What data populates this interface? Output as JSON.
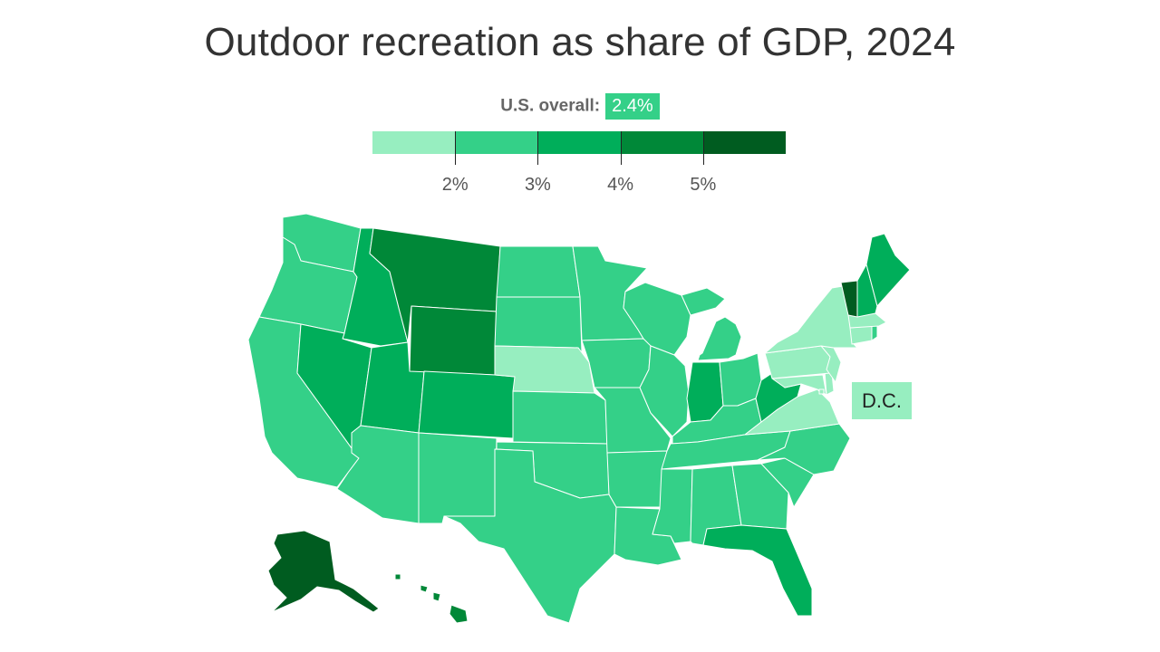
{
  "title": "Outdoor recreation as share of GDP, 2024",
  "overall": {
    "label": "U.S. overall:",
    "value": "2.4%"
  },
  "legend": {
    "colors": [
      "#97eec0",
      "#34d088",
      "#00ae5a",
      "#008838",
      "#005c20"
    ],
    "ticks": [
      "2%",
      "3%",
      "4%",
      "5%"
    ]
  },
  "dc_label": "D.C.",
  "states": [
    {
      "name": "Washington",
      "bin": 1
    },
    {
      "name": "Oregon",
      "bin": 1
    },
    {
      "name": "California",
      "bin": 1
    },
    {
      "name": "Idaho",
      "bin": 2
    },
    {
      "name": "Nevada",
      "bin": 2
    },
    {
      "name": "Utah",
      "bin": 2
    },
    {
      "name": "Arizona",
      "bin": 1
    },
    {
      "name": "Montana",
      "bin": 3
    },
    {
      "name": "Wyoming",
      "bin": 3
    },
    {
      "name": "Colorado",
      "bin": 2
    },
    {
      "name": "New Mexico",
      "bin": 1
    },
    {
      "name": "North Dakota",
      "bin": 1
    },
    {
      "name": "South Dakota",
      "bin": 1
    },
    {
      "name": "Nebraska",
      "bin": 0
    },
    {
      "name": "Kansas",
      "bin": 1
    },
    {
      "name": "Oklahoma",
      "bin": 1
    },
    {
      "name": "Texas",
      "bin": 1
    },
    {
      "name": "Minnesota",
      "bin": 1
    },
    {
      "name": "Iowa",
      "bin": 1
    },
    {
      "name": "Missouri",
      "bin": 1
    },
    {
      "name": "Arkansas",
      "bin": 1
    },
    {
      "name": "Louisiana",
      "bin": 1
    },
    {
      "name": "Wisconsin",
      "bin": 1
    },
    {
      "name": "Illinois",
      "bin": 1
    },
    {
      "name": "Michigan",
      "bin": 1
    },
    {
      "name": "Indiana",
      "bin": 2
    },
    {
      "name": "Ohio",
      "bin": 1
    },
    {
      "name": "Kentucky",
      "bin": 1
    },
    {
      "name": "Tennessee",
      "bin": 1
    },
    {
      "name": "Mississippi",
      "bin": 1
    },
    {
      "name": "Alabama",
      "bin": 1
    },
    {
      "name": "Georgia",
      "bin": 1
    },
    {
      "name": "Florida",
      "bin": 2
    },
    {
      "name": "South Carolina",
      "bin": 1
    },
    {
      "name": "North Carolina",
      "bin": 1
    },
    {
      "name": "Virginia",
      "bin": 0
    },
    {
      "name": "West Virginia",
      "bin": 2
    },
    {
      "name": "Maryland",
      "bin": 0
    },
    {
      "name": "Delaware",
      "bin": 0
    },
    {
      "name": "Pennsylvania",
      "bin": 0
    },
    {
      "name": "New Jersey",
      "bin": 0
    },
    {
      "name": "New York",
      "bin": 0
    },
    {
      "name": "Connecticut",
      "bin": 0
    },
    {
      "name": "Rhode Island",
      "bin": 1
    },
    {
      "name": "Massachusetts",
      "bin": 0
    },
    {
      "name": "Vermont",
      "bin": 4
    },
    {
      "name": "New Hampshire",
      "bin": 2
    },
    {
      "name": "Maine",
      "bin": 2
    },
    {
      "name": "Alaska",
      "bin": 4
    },
    {
      "name": "Hawaii",
      "bin": 3
    },
    {
      "name": "District of Columbia",
      "bin": 0
    }
  ]
}
